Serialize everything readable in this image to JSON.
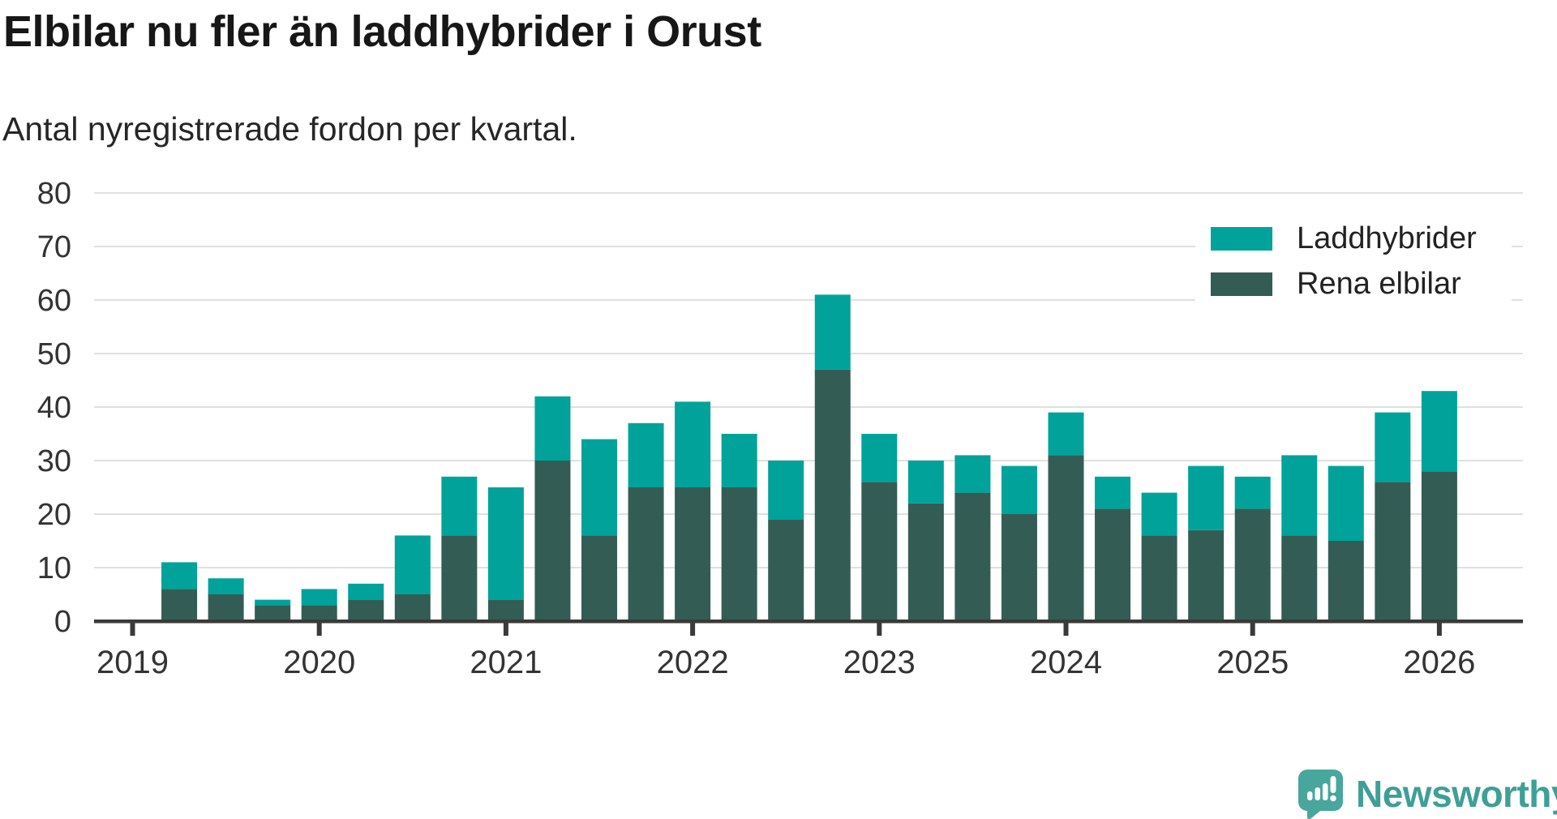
{
  "chart_data": {
    "type": "bar",
    "stacked": true,
    "title": "Elbilar nu fler än laddhybrider i Orust",
    "subtitle": "Antal nyregistrerade fordon per kvartal.",
    "categories": [
      "2019 Q2",
      "2019 Q3",
      "2019 Q4",
      "2020 Q1",
      "2020 Q2",
      "2020 Q3",
      "2020 Q4",
      "2021 Q1",
      "2021 Q2",
      "2021 Q3",
      "2021 Q4",
      "2022 Q1",
      "2022 Q2",
      "2022 Q3",
      "2022 Q4",
      "2023 Q1",
      "2023 Q2",
      "2023 Q3",
      "2023 Q4",
      "2024 Q1",
      "2024 Q2",
      "2024 Q3",
      "2024 Q4",
      "2025 Q1",
      "2025 Q2",
      "2025 Q3",
      "2025 Q4",
      "2026 Q1"
    ],
    "series": [
      {
        "name": "Rena elbilar",
        "color": "#335d54",
        "stack_order": "bottom",
        "values": [
          6,
          5,
          3,
          3,
          4,
          5,
          16,
          4,
          30,
          16,
          25,
          25,
          25,
          19,
          47,
          26,
          22,
          24,
          20,
          31,
          21,
          16,
          17,
          21,
          16,
          15,
          26,
          28
        ]
      },
      {
        "name": "Laddhybrider",
        "color": "#00a29a",
        "stack_order": "top",
        "values": [
          5,
          3,
          1,
          3,
          3,
          11,
          11,
          21,
          12,
          18,
          12,
          16,
          10,
          11,
          14,
          9,
          8,
          7,
          9,
          8,
          6,
          8,
          12,
          6,
          15,
          14,
          13,
          15
        ]
      }
    ],
    "totals": [
      11,
      8,
      4,
      6,
      7,
      16,
      27,
      25,
      42,
      34,
      37,
      41,
      35,
      30,
      61,
      35,
      30,
      31,
      29,
      39,
      27,
      24,
      29,
      27,
      31,
      29,
      39,
      43
    ],
    "legend_order": [
      "Laddhybrider",
      "Rena elbilar"
    ],
    "legend_position": "top-right",
    "x_tick_labels": [
      "2019",
      "2020",
      "2021",
      "2022",
      "2023",
      "2024",
      "2025",
      "2026"
    ],
    "y_ticks": [
      0,
      10,
      20,
      30,
      40,
      50,
      60,
      70,
      80
    ],
    "ylim": [
      0,
      80
    ],
    "grid": true,
    "grid_color": "#e0e0e0",
    "axis_color": "#3a3a3a",
    "tick_label_color": "#333333"
  },
  "footer": {
    "brand": "Newsworthy",
    "brand_color": "#3f9f97",
    "brand_mark_color": "#48a69d"
  }
}
